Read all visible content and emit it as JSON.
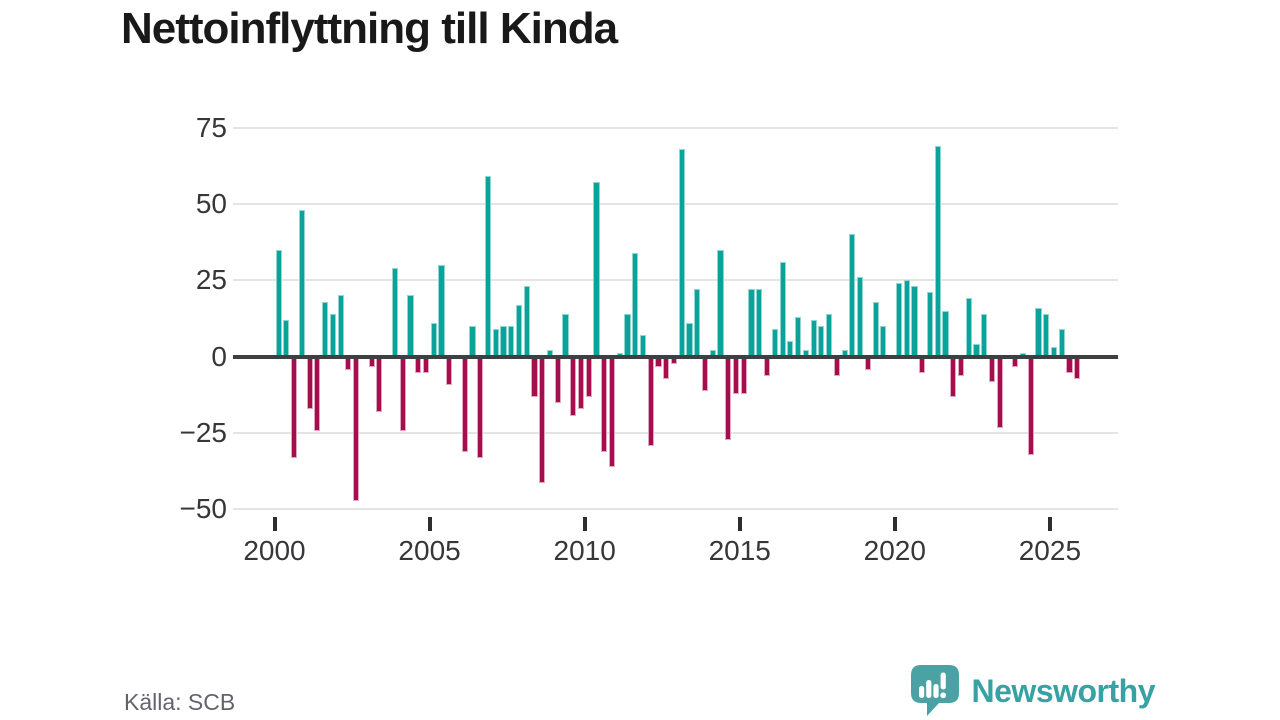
{
  "header": {
    "title": "Nettoinflyttning till Kinda"
  },
  "footer": {
    "source_label": "Källa: SCB",
    "brand_name": "Newsworthy",
    "brand_icon": "bar-chart-speech-bubble-icon"
  },
  "colors": {
    "background": "#ffffff",
    "positive_bar": "#0aa39b",
    "negative_bar": "#a50d4d",
    "grid": "#e4e4e4",
    "zero_line": "#3d4043",
    "axis_text": "#37373a",
    "title_text": "#191919",
    "source_text": "#63636d",
    "brand_teal": "#38a1a4"
  },
  "chart_data": {
    "type": "bar",
    "title": "Nettoinflyttning till Kinda",
    "frequency": "quarterly",
    "x_start": "2000Q1",
    "x_end": "2025Q4",
    "x_tick_labels": [
      "2000",
      "2005",
      "2010",
      "2015",
      "2020",
      "2025"
    ],
    "y_ticks": [
      75,
      50,
      25,
      0,
      -25,
      -50
    ],
    "y_tick_labels": [
      "75",
      "50",
      "25",
      "0",
      "−25",
      "−50"
    ],
    "ylim": [
      -50,
      75
    ],
    "grid": true,
    "legend": false,
    "bar_colors": {
      "positive": "#0aa39b",
      "negative": "#a50d4d"
    },
    "values": [
      35,
      12,
      -33,
      48,
      -17,
      -24,
      18,
      14,
      20,
      -4,
      -47,
      0,
      -3,
      -18,
      0,
      29,
      -24,
      20,
      -5,
      -5,
      11,
      30,
      -9,
      0,
      -31,
      10,
      -33,
      59,
      9,
      10,
      10,
      17,
      23,
      -13,
      -41,
      2,
      -15,
      14,
      -19,
      -17,
      -13,
      57,
      -31,
      -36,
      1,
      14,
      34,
      7,
      -29,
      -3,
      -7,
      -2,
      68,
      11,
      22,
      -11,
      2,
      35,
      -27,
      -12,
      -12,
      22,
      22,
      -6,
      9,
      31,
      5,
      13,
      2,
      12,
      10,
      14,
      -6,
      2,
      40,
      26,
      -4,
      18,
      10,
      0,
      24,
      25,
      23,
      -5,
      21,
      69,
      15,
      -13,
      -6,
      19,
      4,
      14,
      -8,
      -23,
      0,
      -3,
      1,
      -32,
      16,
      14,
      3,
      9,
      -5,
      -7
    ]
  }
}
